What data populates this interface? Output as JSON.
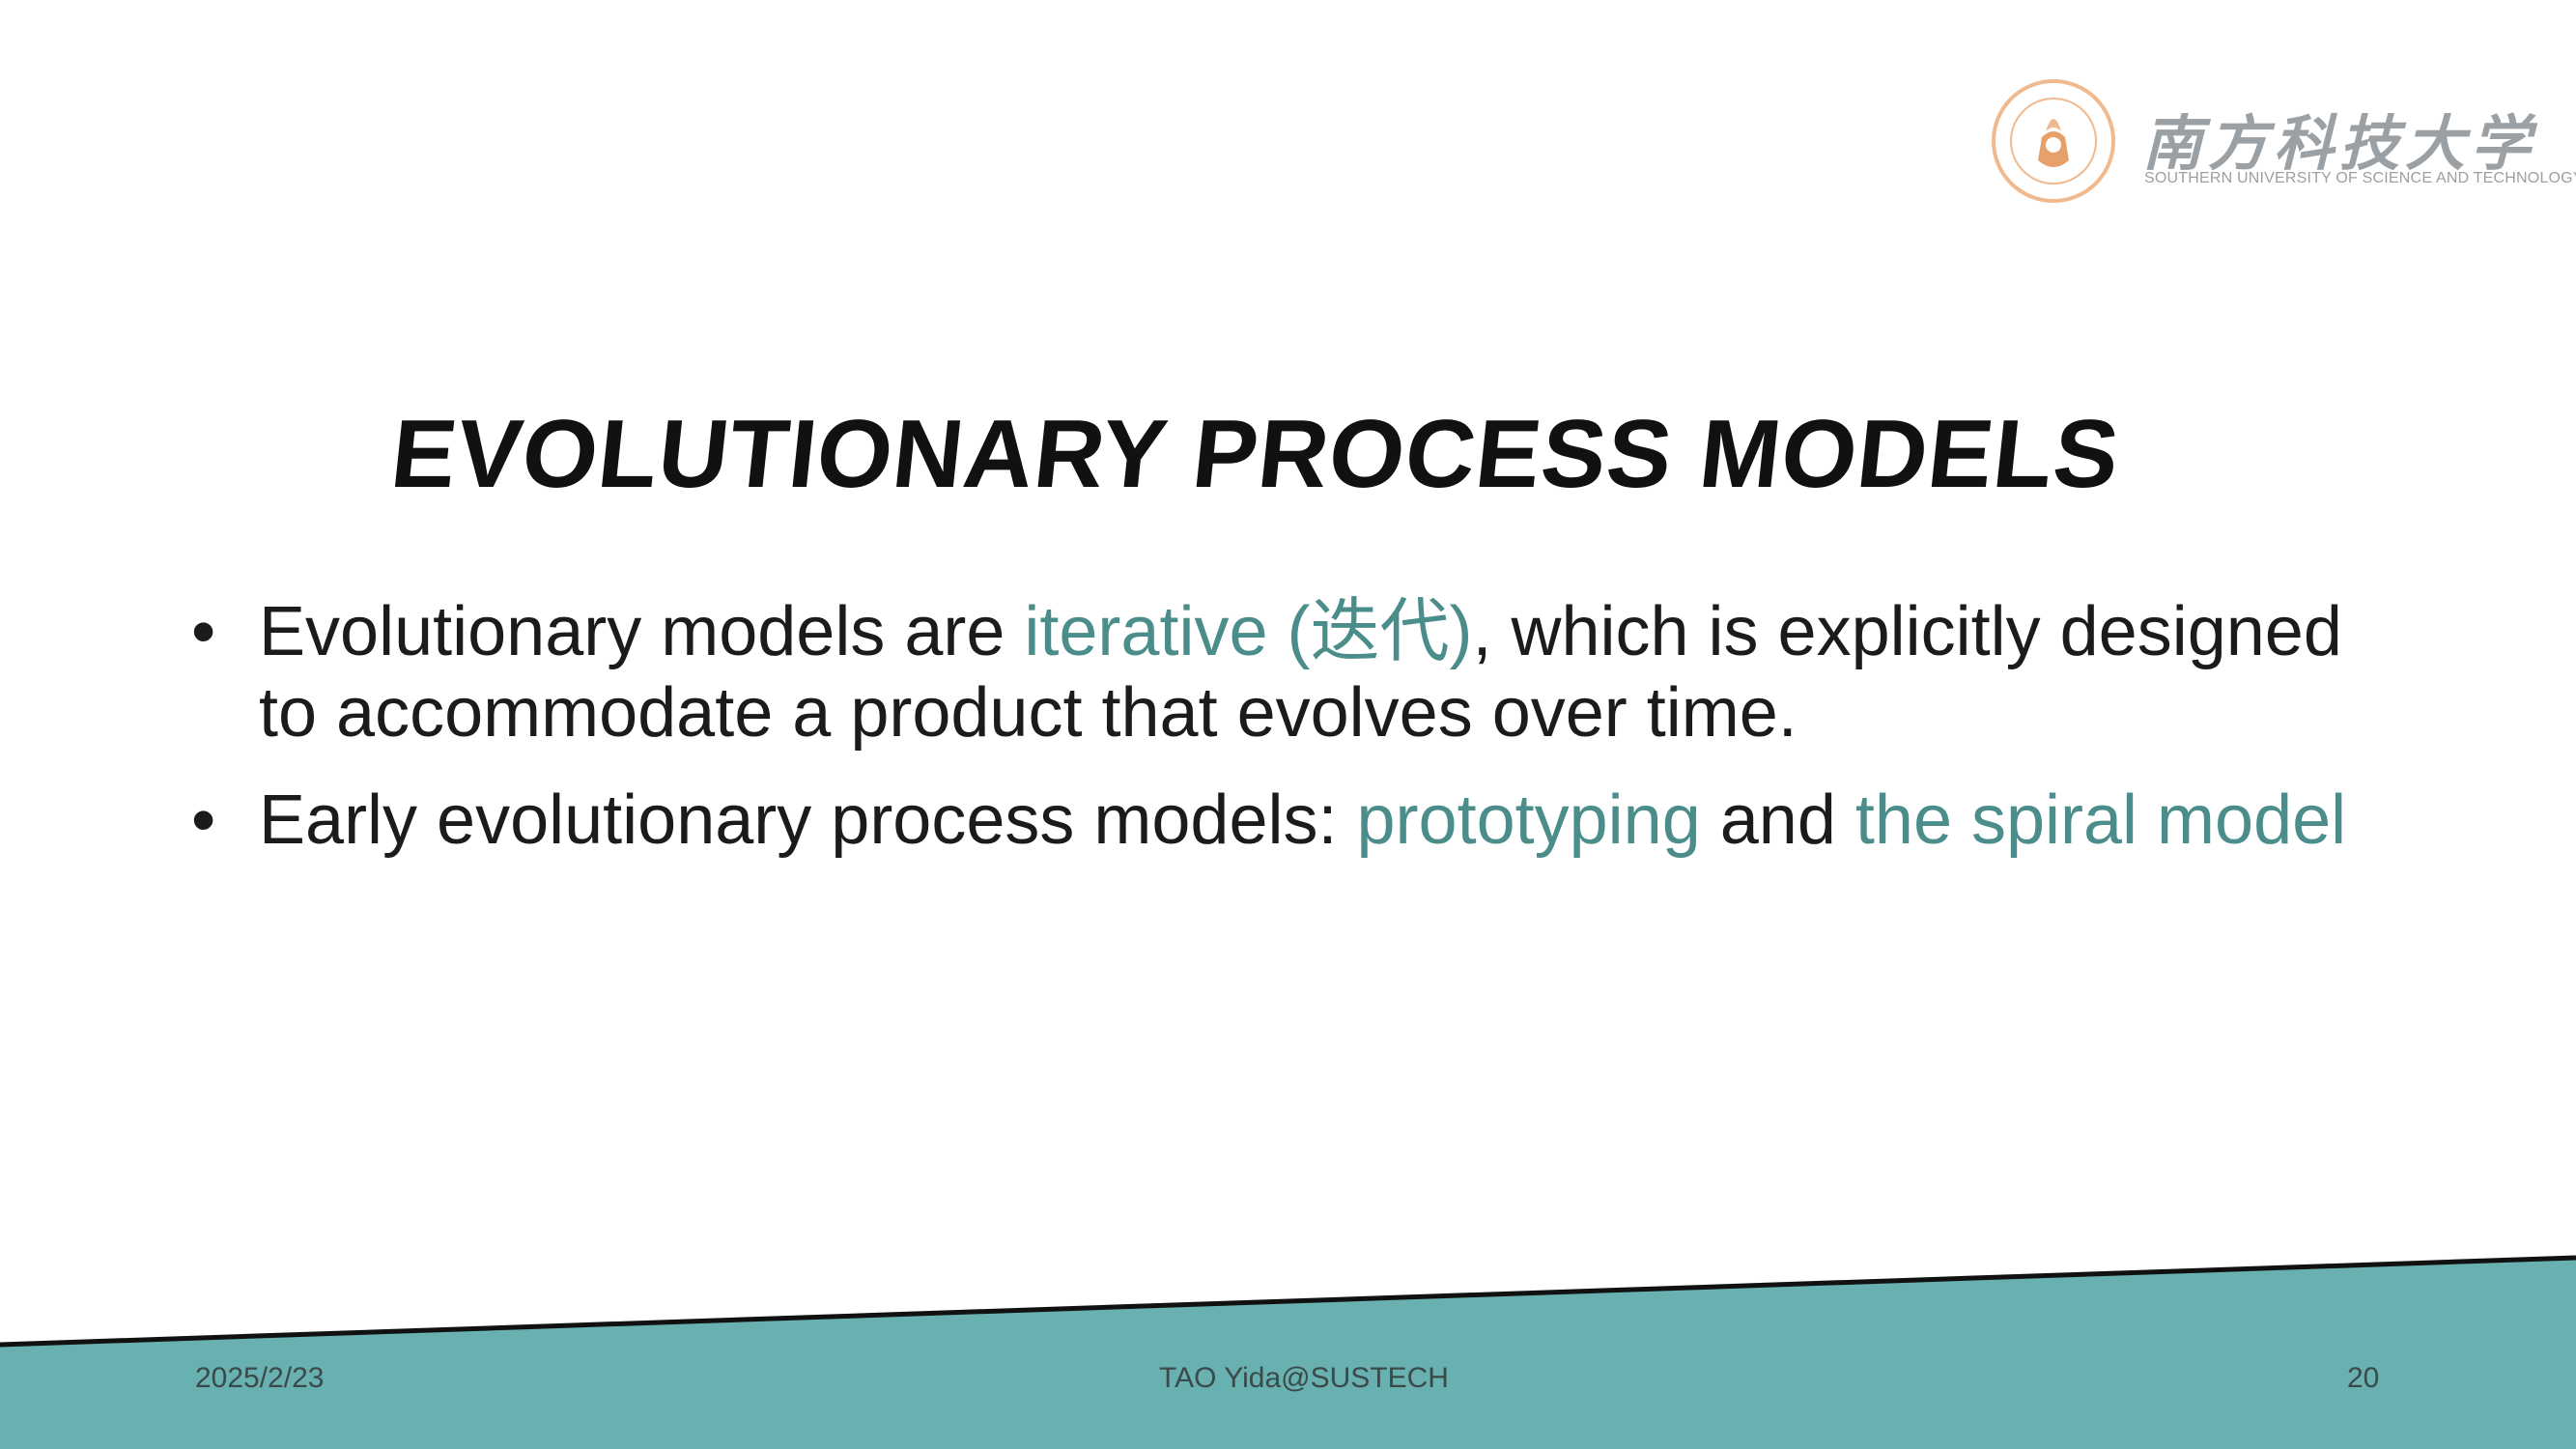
{
  "logo": {
    "chinese_name": "南方科技大学",
    "english_name": "SOUTHERN UNIVERSITY OF SCIENCE AND TECHNOLOGY",
    "seal_colors": [
      "#f1b98e",
      "#e8a06b"
    ]
  },
  "slide": {
    "title": "Evolutionary Process Models",
    "bullets": [
      {
        "parts": [
          {
            "text": "Evolutionary models are ",
            "accent": false
          },
          {
            "text": "iterative (迭代)",
            "accent": true
          },
          {
            "text": ", which is explicitly designed to accommodate a product that evolves over time.",
            "accent": false
          }
        ]
      },
      {
        "parts": [
          {
            "text": "Early evolutionary process models: ",
            "accent": false
          },
          {
            "text": "prototyping",
            "accent": true
          },
          {
            "text": " and ",
            "accent": false
          },
          {
            "text": "the spiral model",
            "accent": true
          }
        ]
      }
    ]
  },
  "footer": {
    "date": "2025/2/23",
    "author": "TAO Yida@SUSTECH",
    "page_number": "20",
    "band_color": "#68b1b0",
    "line_color": "#111111"
  },
  "colors": {
    "accent": "#4b8d8b",
    "text": "#1b1b1b"
  }
}
